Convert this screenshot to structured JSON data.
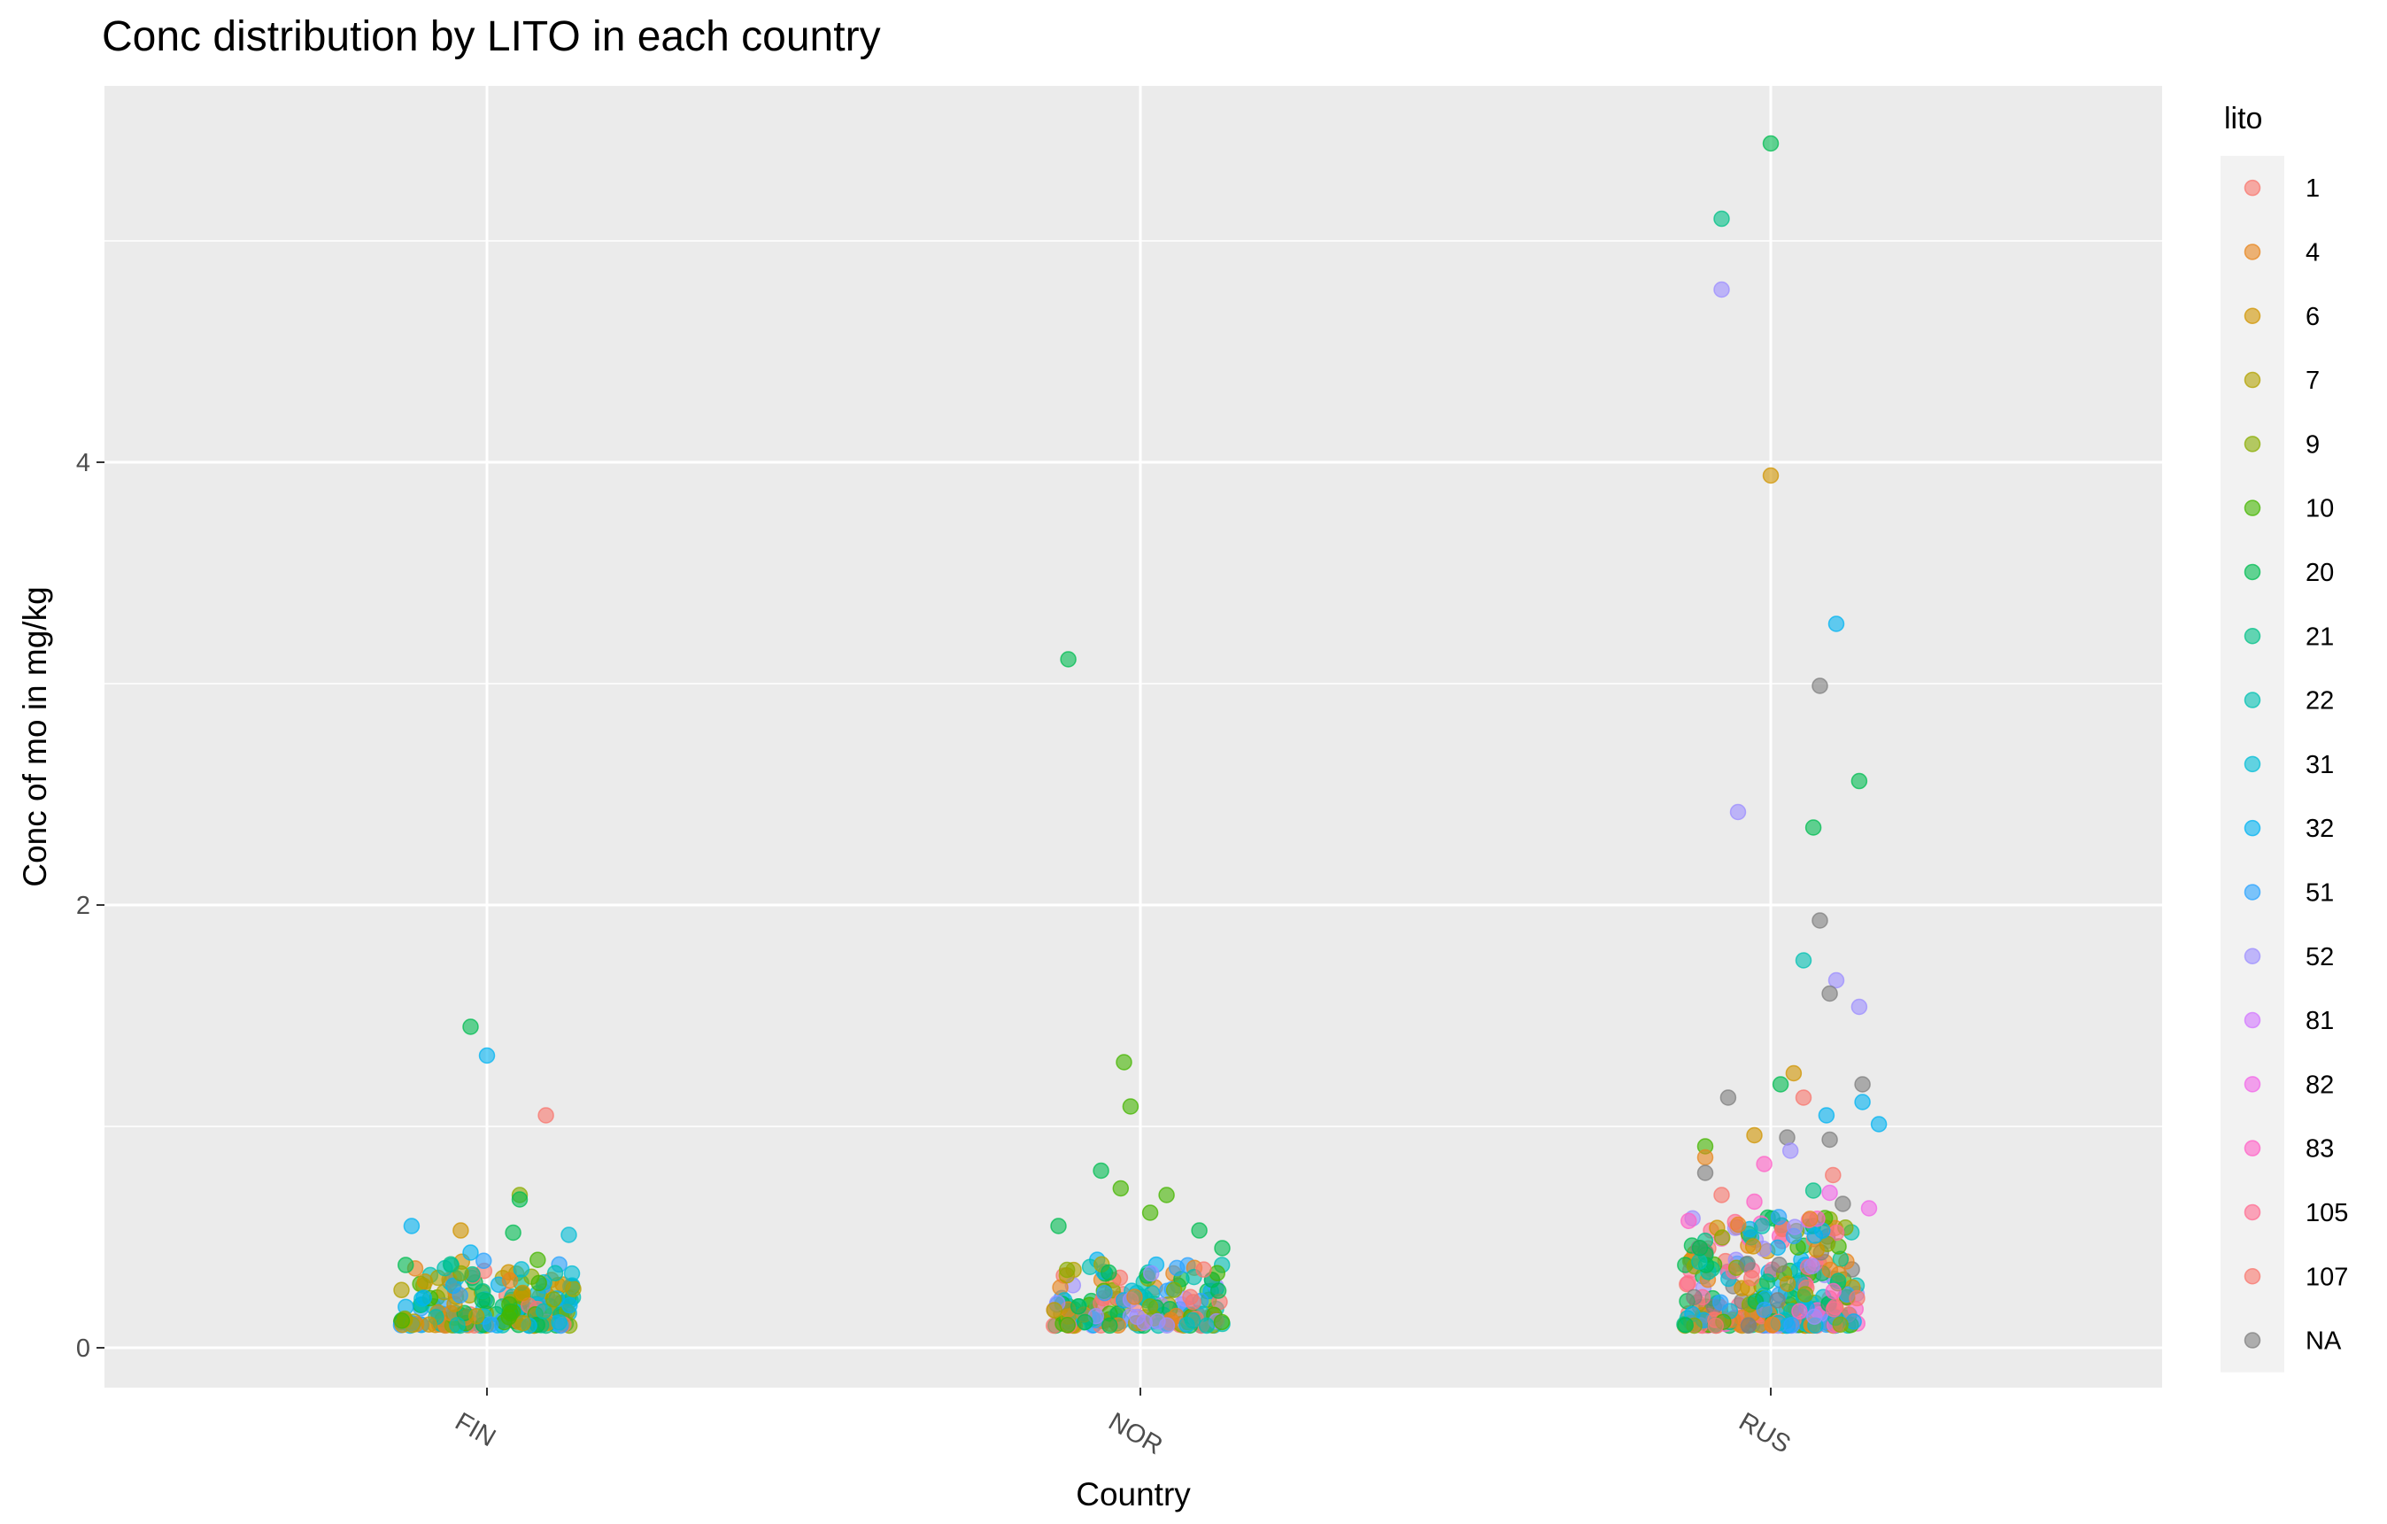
{
  "chart_data": {
    "type": "scatter",
    "title": "Conc distribution by LITO in each country",
    "xlabel": "Country",
    "ylabel": "Conc of  mo  in mg/kg",
    "categories": [
      "FIN",
      "NOR",
      "RUS"
    ],
    "y_ticks": [
      "0",
      "2",
      "4"
    ],
    "ylim": [
      -0.18,
      5.7
    ],
    "grid": true,
    "legend": {
      "title": "lito",
      "position": "right",
      "entries": [
        {
          "label": "1",
          "color": "#F8766D"
        },
        {
          "label": "4",
          "color": "#E7851E"
        },
        {
          "label": "6",
          "color": "#D09400"
        },
        {
          "label": "7",
          "color": "#B2A100"
        },
        {
          "label": "9",
          "color": "#89AC00"
        },
        {
          "label": "10",
          "color": "#45B500"
        },
        {
          "label": "20",
          "color": "#00BC51"
        },
        {
          "label": "21",
          "color": "#00C087"
        },
        {
          "label": "22",
          "color": "#00C0B2"
        },
        {
          "label": "31",
          "color": "#00BCD6"
        },
        {
          "label": "32",
          "color": "#00B3F2"
        },
        {
          "label": "51",
          "color": "#29A3FF"
        },
        {
          "label": "52",
          "color": "#9C8DFF"
        },
        {
          "label": "81",
          "color": "#D277FF"
        },
        {
          "label": "82",
          "color": "#F166E8"
        },
        {
          "label": "83",
          "color": "#FF61C7"
        },
        {
          "label": "105",
          "color": "#FF6C91"
        },
        {
          "label": "107",
          "color": "#F8766D"
        },
        {
          "label": "NA",
          "color": "#7F7F7F"
        }
      ]
    },
    "outliers": [
      {
        "country": "FIN",
        "jitter": -0.05,
        "value": 1.45,
        "lito": "20"
      },
      {
        "country": "FIN",
        "jitter": 0.0,
        "value": 1.32,
        "lito": "32"
      },
      {
        "country": "FIN",
        "jitter": 0.18,
        "value": 1.05,
        "lito": "1"
      },
      {
        "country": "FIN",
        "jitter": 0.1,
        "value": 0.69,
        "lito": "9"
      },
      {
        "country": "FIN",
        "jitter": 0.1,
        "value": 0.67,
        "lito": "20"
      },
      {
        "country": "FIN",
        "jitter": 0.08,
        "value": 0.52,
        "lito": "20"
      },
      {
        "country": "FIN",
        "jitter": -0.08,
        "value": 0.53,
        "lito": "6"
      },
      {
        "country": "FIN",
        "jitter": -0.23,
        "value": 0.55,
        "lito": "32"
      },
      {
        "country": "FIN",
        "jitter": 0.25,
        "value": 0.51,
        "lito": "31"
      },
      {
        "country": "FIN",
        "jitter": -0.05,
        "value": 0.43,
        "lito": "32"
      },
      {
        "country": "NOR",
        "jitter": -0.22,
        "value": 3.11,
        "lito": "20"
      },
      {
        "country": "NOR",
        "jitter": -0.05,
        "value": 1.29,
        "lito": "10"
      },
      {
        "country": "NOR",
        "jitter": -0.03,
        "value": 1.09,
        "lito": "10"
      },
      {
        "country": "NOR",
        "jitter": -0.12,
        "value": 0.8,
        "lito": "20"
      },
      {
        "country": "NOR",
        "jitter": -0.06,
        "value": 0.72,
        "lito": "10"
      },
      {
        "country": "NOR",
        "jitter": 0.08,
        "value": 0.69,
        "lito": "10"
      },
      {
        "country": "NOR",
        "jitter": 0.03,
        "value": 0.61,
        "lito": "10"
      },
      {
        "country": "NOR",
        "jitter": -0.25,
        "value": 0.55,
        "lito": "20"
      },
      {
        "country": "NOR",
        "jitter": 0.18,
        "value": 0.53,
        "lito": "20"
      },
      {
        "country": "NOR",
        "jitter": 0.25,
        "value": 0.45,
        "lito": "20"
      },
      {
        "country": "RUS",
        "jitter": -0.15,
        "value": 5.1,
        "lito": "21"
      },
      {
        "country": "RUS",
        "jitter": 0.0,
        "value": 5.44,
        "lito": "20"
      },
      {
        "country": "RUS",
        "jitter": -0.15,
        "value": 4.78,
        "lito": "52"
      },
      {
        "country": "RUS",
        "jitter": 0.0,
        "value": 3.94,
        "lito": "6"
      },
      {
        "country": "RUS",
        "jitter": 0.2,
        "value": 3.27,
        "lito": "32"
      },
      {
        "country": "RUS",
        "jitter": 0.15,
        "value": 2.99,
        "lito": "NA"
      },
      {
        "country": "RUS",
        "jitter": 0.27,
        "value": 2.56,
        "lito": "20"
      },
      {
        "country": "RUS",
        "jitter": -0.1,
        "value": 2.42,
        "lito": "52"
      },
      {
        "country": "RUS",
        "jitter": 0.13,
        "value": 2.35,
        "lito": "20"
      },
      {
        "country": "RUS",
        "jitter": 0.15,
        "value": 1.93,
        "lito": "NA"
      },
      {
        "country": "RUS",
        "jitter": 0.1,
        "value": 1.75,
        "lito": "22"
      },
      {
        "country": "RUS",
        "jitter": 0.2,
        "value": 1.66,
        "lito": "52"
      },
      {
        "country": "RUS",
        "jitter": 0.18,
        "value": 1.6,
        "lito": "NA"
      },
      {
        "country": "RUS",
        "jitter": 0.27,
        "value": 1.54,
        "lito": "52"
      },
      {
        "country": "RUS",
        "jitter": 0.03,
        "value": 1.19,
        "lito": "20"
      },
      {
        "country": "RUS",
        "jitter": 0.28,
        "value": 1.19,
        "lito": "NA"
      },
      {
        "country": "RUS",
        "jitter": 0.07,
        "value": 1.24,
        "lito": "6"
      },
      {
        "country": "RUS",
        "jitter": -0.13,
        "value": 1.13,
        "lito": "NA"
      },
      {
        "country": "RUS",
        "jitter": 0.1,
        "value": 1.13,
        "lito": "1"
      },
      {
        "country": "RUS",
        "jitter": 0.28,
        "value": 1.11,
        "lito": "32"
      },
      {
        "country": "RUS",
        "jitter": 0.17,
        "value": 1.05,
        "lito": "32"
      },
      {
        "country": "RUS",
        "jitter": 0.33,
        "value": 1.01,
        "lito": "32"
      },
      {
        "country": "RUS",
        "jitter": -0.05,
        "value": 0.96,
        "lito": "6"
      },
      {
        "country": "RUS",
        "jitter": 0.05,
        "value": 0.95,
        "lito": "NA"
      },
      {
        "country": "RUS",
        "jitter": 0.18,
        "value": 0.94,
        "lito": "NA"
      },
      {
        "country": "RUS",
        "jitter": -0.2,
        "value": 0.91,
        "lito": "10"
      },
      {
        "country": "RUS",
        "jitter": 0.06,
        "value": 0.89,
        "lito": "52"
      },
      {
        "country": "RUS",
        "jitter": -0.2,
        "value": 0.86,
        "lito": "4"
      },
      {
        "country": "RUS",
        "jitter": -0.02,
        "value": 0.83,
        "lito": "83"
      },
      {
        "country": "RUS",
        "jitter": -0.2,
        "value": 0.79,
        "lito": "NA"
      },
      {
        "country": "RUS",
        "jitter": 0.19,
        "value": 0.78,
        "lito": "1"
      },
      {
        "country": "RUS",
        "jitter": 0.13,
        "value": 0.71,
        "lito": "21"
      },
      {
        "country": "RUS",
        "jitter": 0.18,
        "value": 0.7,
        "lito": "82"
      },
      {
        "country": "RUS",
        "jitter": -0.15,
        "value": 0.69,
        "lito": "1"
      },
      {
        "country": "RUS",
        "jitter": 0.22,
        "value": 0.65,
        "lito": "NA"
      },
      {
        "country": "RUS",
        "jitter": 0.3,
        "value": 0.63,
        "lito": "82"
      },
      {
        "country": "RUS",
        "jitter": -0.05,
        "value": 0.66,
        "lito": "83"
      }
    ]
  }
}
